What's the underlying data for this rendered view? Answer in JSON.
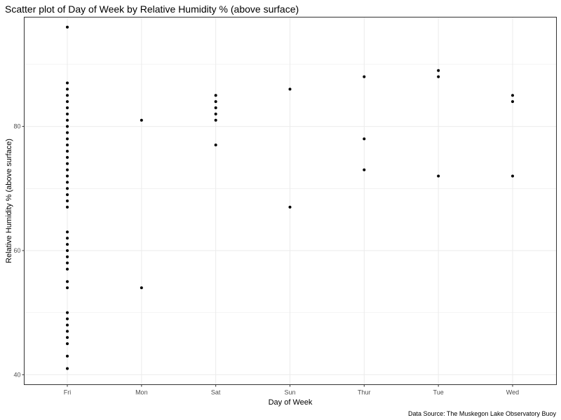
{
  "chart_data": {
    "type": "scatter",
    "title": "Scatter plot of Day of Week by Relative Humidity % (above surface)",
    "xlabel": "Day of Week",
    "ylabel": "Relative Humidity % (above surface)",
    "caption": "Data Source: The Muskegon Lake Observatory Buoy",
    "categories": [
      "Fri",
      "Mon",
      "Sat",
      "Sun",
      "Thur",
      "Tue",
      "Wed"
    ],
    "y_ticks": [
      40,
      60,
      80
    ],
    "ylim": [
      38.4,
      97.6
    ],
    "grid": true,
    "points": [
      {
        "x": "Fri",
        "y": 96
      },
      {
        "x": "Fri",
        "y": 87
      },
      {
        "x": "Fri",
        "y": 86
      },
      {
        "x": "Fri",
        "y": 85
      },
      {
        "x": "Fri",
        "y": 84
      },
      {
        "x": "Fri",
        "y": 83
      },
      {
        "x": "Fri",
        "y": 82
      },
      {
        "x": "Fri",
        "y": 81
      },
      {
        "x": "Fri",
        "y": 80
      },
      {
        "x": "Fri",
        "y": 79
      },
      {
        "x": "Fri",
        "y": 78
      },
      {
        "x": "Fri",
        "y": 77
      },
      {
        "x": "Fri",
        "y": 76
      },
      {
        "x": "Fri",
        "y": 75
      },
      {
        "x": "Fri",
        "y": 74
      },
      {
        "x": "Fri",
        "y": 73
      },
      {
        "x": "Fri",
        "y": 72
      },
      {
        "x": "Fri",
        "y": 71
      },
      {
        "x": "Fri",
        "y": 70
      },
      {
        "x": "Fri",
        "y": 69
      },
      {
        "x": "Fri",
        "y": 68
      },
      {
        "x": "Fri",
        "y": 67
      },
      {
        "x": "Fri",
        "y": 63
      },
      {
        "x": "Fri",
        "y": 62
      },
      {
        "x": "Fri",
        "y": 61
      },
      {
        "x": "Fri",
        "y": 60
      },
      {
        "x": "Fri",
        "y": 59
      },
      {
        "x": "Fri",
        "y": 58
      },
      {
        "x": "Fri",
        "y": 57
      },
      {
        "x": "Fri",
        "y": 55
      },
      {
        "x": "Fri",
        "y": 54
      },
      {
        "x": "Fri",
        "y": 50
      },
      {
        "x": "Fri",
        "y": 49
      },
      {
        "x": "Fri",
        "y": 48
      },
      {
        "x": "Fri",
        "y": 47
      },
      {
        "x": "Fri",
        "y": 46
      },
      {
        "x": "Fri",
        "y": 45
      },
      {
        "x": "Fri",
        "y": 43
      },
      {
        "x": "Fri",
        "y": 41
      },
      {
        "x": "Mon",
        "y": 81
      },
      {
        "x": "Mon",
        "y": 54
      },
      {
        "x": "Sat",
        "y": 85
      },
      {
        "x": "Sat",
        "y": 84
      },
      {
        "x": "Sat",
        "y": 83
      },
      {
        "x": "Sat",
        "y": 82
      },
      {
        "x": "Sat",
        "y": 81
      },
      {
        "x": "Sat",
        "y": 77
      },
      {
        "x": "Sun",
        "y": 86
      },
      {
        "x": "Sun",
        "y": 67
      },
      {
        "x": "Thur",
        "y": 88
      },
      {
        "x": "Thur",
        "y": 78
      },
      {
        "x": "Thur",
        "y": 73
      },
      {
        "x": "Tue",
        "y": 89
      },
      {
        "x": "Tue",
        "y": 88
      },
      {
        "x": "Tue",
        "y": 72
      },
      {
        "x": "Wed",
        "y": 85
      },
      {
        "x": "Wed",
        "y": 84
      },
      {
        "x": "Wed",
        "y": 72
      }
    ],
    "colors": {
      "point": "#000000",
      "grid": "#ebebeb",
      "panel_border": "#333333",
      "tick_label": "#4d4d4d"
    }
  }
}
